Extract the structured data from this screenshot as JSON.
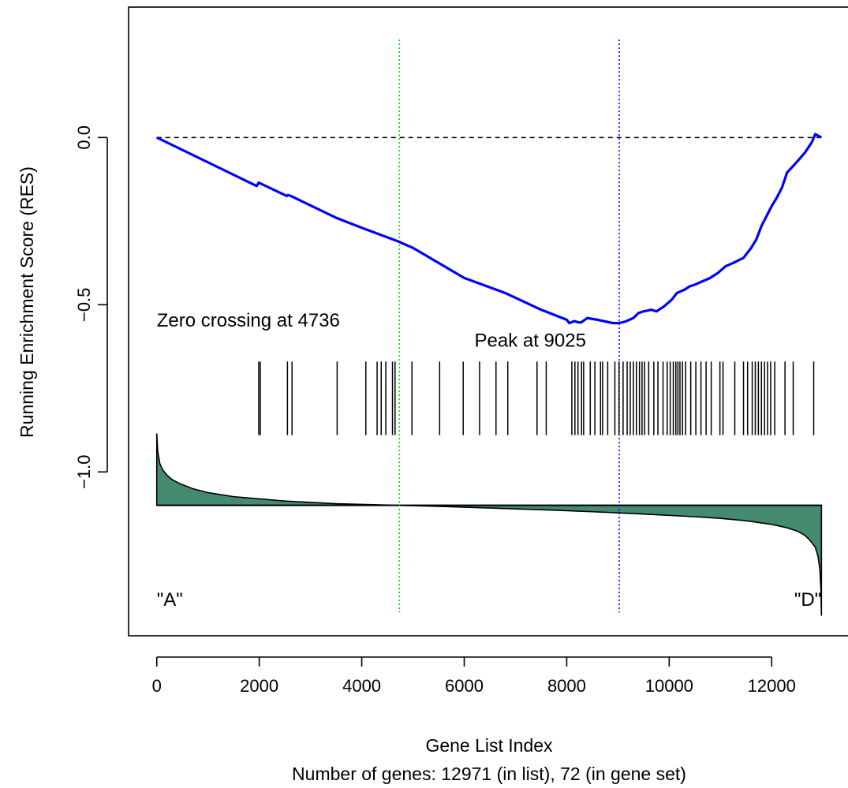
{
  "chart_data": {
    "type": "line",
    "title": "",
    "xlabel": "Gene List Index",
    "subtitle": "Number of genes: 12971 (in list), 72 (in gene set)",
    "ylabel": "Running Enrichment Score (RES)",
    "xlim": [
      -550,
      13520
    ],
    "ylim": [
      -1.49,
      0.39
    ],
    "x_ticks": [
      0,
      2000,
      4000,
      6000,
      8000,
      10000,
      12000
    ],
    "x_tick_labels": [
      "0",
      "2000",
      "4000",
      "6000",
      "8000",
      "10000",
      "12000"
    ],
    "y_ticks": [
      0.0,
      -0.5,
      -1.0
    ],
    "y_tick_labels": [
      "0.0",
      "−0.5",
      "−1.0"
    ],
    "zero_line": {
      "y": 0,
      "style": "dashed",
      "color": "#000000"
    },
    "vlines": [
      {
        "x": 4736,
        "color": "#00cc00",
        "style": "dotted"
      },
      {
        "x": 9025,
        "color": "#0000ff",
        "style": "dotted"
      }
    ],
    "annotations": [
      {
        "text": "Zero crossing at 4736",
        "x": 0,
        "y": -0.565
      },
      {
        "text": "Peak at 9025",
        "x": 6200,
        "y": -0.625
      },
      {
        "text": "\"A\"",
        "x": 0,
        "y": -1.4
      },
      {
        "text": "\"D\"",
        "x": 12970,
        "y": -1.4,
        "align": "right"
      }
    ],
    "series": [
      {
        "type": "line",
        "color": "#0000ff",
        "x": [
          0,
          1950,
          1990,
          2540,
          2560,
          2620,
          3500,
          4000,
          4700,
          5000,
          6000,
          6800,
          7500,
          8000,
          8050,
          8150,
          8230,
          8280,
          8400,
          8600,
          8750,
          8900,
          9025,
          9150,
          9300,
          9400,
          9500,
          9650,
          9750,
          9900,
          10050,
          10150,
          10300,
          10400,
          10500,
          10650,
          10800,
          10950,
          11100,
          11250,
          11450,
          11600,
          11700,
          11800,
          11900,
          12000,
          12100,
          12200,
          12300,
          12450,
          12650,
          12780,
          12850,
          12971
        ],
        "y": [
          0,
          -0.145,
          -0.135,
          -0.175,
          -0.172,
          -0.175,
          -0.24,
          -0.27,
          -0.31,
          -0.33,
          -0.42,
          -0.465,
          -0.515,
          -0.545,
          -0.555,
          -0.549,
          -0.553,
          -0.553,
          -0.54,
          -0.545,
          -0.55,
          -0.555,
          -0.555,
          -0.55,
          -0.54,
          -0.525,
          -0.52,
          -0.515,
          -0.52,
          -0.505,
          -0.485,
          -0.465,
          -0.455,
          -0.445,
          -0.44,
          -0.43,
          -0.42,
          -0.405,
          -0.385,
          -0.375,
          -0.36,
          -0.33,
          -0.305,
          -0.265,
          -0.235,
          -0.205,
          -0.18,
          -0.15,
          -0.105,
          -0.08,
          -0.045,
          -0.015,
          0.01,
          0.0
        ]
      },
      {
        "type": "hits",
        "color": "#000000",
        "y_range": [
          -0.89,
          -0.67
        ],
        "x": [
          1990,
          2020,
          2550,
          2640,
          3520,
          4080,
          4300,
          4380,
          4470,
          4600,
          4650,
          4980,
          5520,
          5980,
          6300,
          6620,
          6850,
          7420,
          7600,
          8100,
          8160,
          8220,
          8290,
          8330,
          8460,
          8550,
          8660,
          8700,
          8800,
          8940,
          9020,
          9100,
          9180,
          9240,
          9300,
          9360,
          9420,
          9470,
          9520,
          9600,
          9700,
          9780,
          9880,
          9960,
          10020,
          10080,
          10130,
          10170,
          10210,
          10260,
          10320,
          10420,
          10520,
          10620,
          10720,
          10820,
          10990,
          11050,
          11280,
          11450,
          11530,
          11620,
          11680,
          11740,
          11800,
          11860,
          11920,
          11980,
          12060,
          12260,
          12420,
          12820
        ]
      },
      {
        "type": "ranked_metric",
        "fill": "#448a6e",
        "baseline": -1.1,
        "x": [
          0,
          20,
          60,
          120,
          200,
          300,
          450,
          700,
          1000,
          1500,
          2500,
          3500,
          4736,
          5500,
          6500,
          7500,
          8500,
          9500,
          10500,
          11000,
          11500,
          12000,
          12300,
          12500,
          12650,
          12750,
          12850,
          12900,
          12940,
          12960,
          12971
        ],
        "y": [
          -0.885,
          -0.94,
          -0.975,
          -0.995,
          -1.01,
          -1.023,
          -1.035,
          -1.05,
          -1.062,
          -1.074,
          -1.087,
          -1.095,
          -1.1,
          -1.103,
          -1.108,
          -1.113,
          -1.119,
          -1.126,
          -1.134,
          -1.139,
          -1.146,
          -1.157,
          -1.167,
          -1.177,
          -1.19,
          -1.205,
          -1.225,
          -1.25,
          -1.29,
          -1.35,
          -1.43
        ]
      }
    ]
  }
}
